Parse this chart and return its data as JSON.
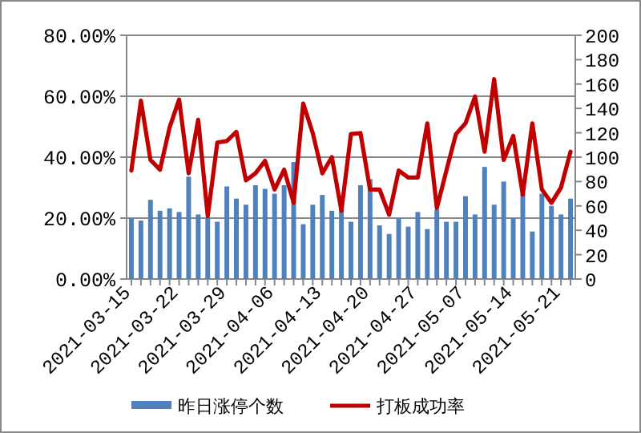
{
  "chart_data": {
    "type": "bar",
    "categories": [
      "2021-03-15",
      null,
      null,
      null,
      null,
      "2021-03-22",
      null,
      null,
      null,
      null,
      "2021-03-29",
      null,
      null,
      null,
      null,
      "2021-04-06",
      null,
      null,
      null,
      null,
      "2021-04-13",
      null,
      null,
      null,
      null,
      "2021-04-20",
      null,
      null,
      null,
      null,
      "2021-04-27",
      null,
      null,
      null,
      null,
      "2021-05-07",
      null,
      null,
      null,
      null,
      "2021-05-14",
      null,
      null,
      null,
      null,
      "2021-05-21",
      null
    ],
    "series": [
      {
        "name": "昨日涨停个数",
        "type": "bar",
        "axis": "y2",
        "color": "#4f81bd",
        "values": [
          50,
          48,
          65,
          56,
          58,
          55,
          84,
          53,
          50,
          47,
          76,
          66,
          61,
          77,
          74,
          70,
          77,
          96,
          45,
          61,
          69,
          56,
          57,
          47,
          77,
          82,
          44,
          37,
          50,
          43,
          55,
          41,
          57,
          47,
          47,
          68,
          53,
          92,
          61,
          80,
          50,
          70,
          39,
          70,
          60,
          53,
          66
        ]
      },
      {
        "name": "打板成功率",
        "type": "line",
        "color": "#c00000",
        "values": [
          35.6,
          58.5,
          39.1,
          35.9,
          49.7,
          58.9,
          34.7,
          52.3,
          20.6,
          44.8,
          45.3,
          48.3,
          32.4,
          34.7,
          38.8,
          29.4,
          35.9,
          25.0,
          57.6,
          47.9,
          34.7,
          40.0,
          22.4,
          47.6,
          47.9,
          29.4,
          29.4,
          21.1,
          35.6,
          33.3,
          33.3,
          51.1,
          23.3,
          35.6,
          47.6,
          51.1,
          59.9,
          41.8,
          65.6,
          39.1,
          47.0,
          27.7,
          51.1,
          29.4,
          25.0,
          30.0,
          41.8
        ]
      }
    ],
    "ylim": [
      0,
      80
    ],
    "yticks": [
      {
        "value": 0,
        "label": "0.00%"
      },
      {
        "value": 20,
        "label": "20.00%"
      },
      {
        "value": 40,
        "label": "40.00%"
      },
      {
        "value": 60,
        "label": "60.00%"
      },
      {
        "value": 80,
        "label": "80.00%"
      }
    ],
    "y2lim": [
      0,
      200
    ],
    "y2ticks": [
      0,
      20,
      40,
      60,
      80,
      100,
      120,
      140,
      160,
      180,
      200
    ],
    "grid": "y",
    "legend": "bottom"
  }
}
